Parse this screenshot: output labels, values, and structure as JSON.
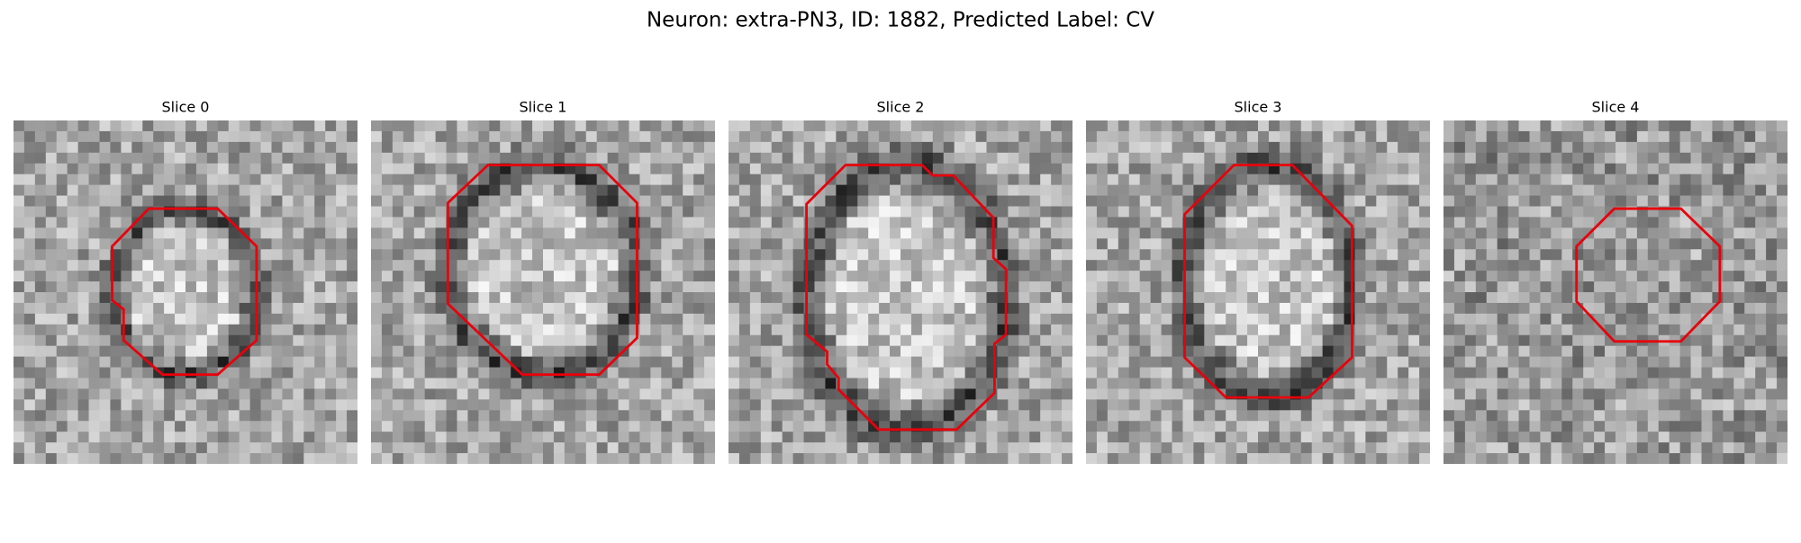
{
  "header": {
    "title": "Neuron: extra-PN3, ID: 1882, Predicted Label: CV"
  },
  "panels": [
    {
      "title": "Slice 0"
    },
    {
      "title": "Slice 1"
    },
    {
      "title": "Slice 2"
    },
    {
      "title": "Slice 3"
    },
    {
      "title": "Slice 4"
    }
  ]
}
